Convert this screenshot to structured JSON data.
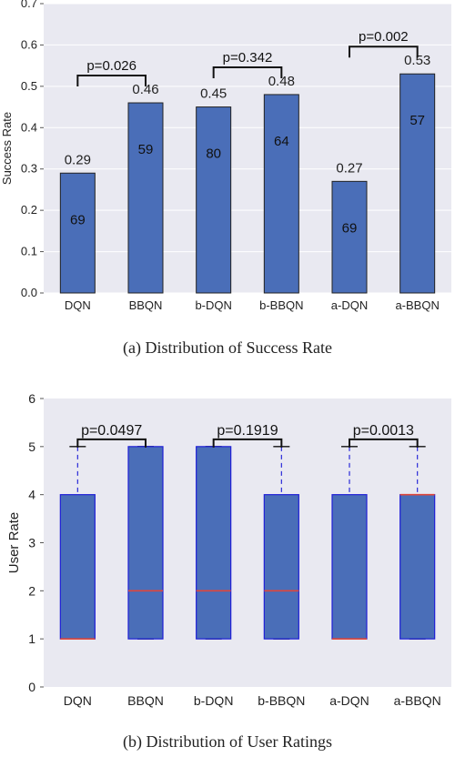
{
  "chart_data": [
    {
      "type": "bar",
      "caption": "(a) Distribution of Success Rate",
      "ylabel": "Success Rate",
      "ylim": [
        0,
        0.7
      ],
      "yticks": [
        "0.0",
        "0.1",
        "0.2",
        "0.3",
        "0.4",
        "0.5",
        "0.6",
        "0.7"
      ],
      "categories": [
        "DQN",
        "BBQN",
        "b-DQN",
        "b-BBQN",
        "a-DQN",
        "a-BBQN"
      ],
      "values": [
        0.29,
        0.46,
        0.45,
        0.48,
        0.27,
        0.53
      ],
      "value_labels": [
        "0.29",
        "0.46",
        "0.45",
        "0.48",
        "0.27",
        "0.53"
      ],
      "inner_labels": [
        "69",
        "59",
        "80",
        "64",
        "69",
        "57"
      ],
      "pvalues": [
        {
          "from": 0,
          "to": 1,
          "label": "p=0.026"
        },
        {
          "from": 2,
          "to": 3,
          "label": "p=0.342"
        },
        {
          "from": 4,
          "to": 5,
          "label": "p=0.002"
        }
      ],
      "colors": {
        "bar": "#4a6eb8",
        "background": "#e9e9f1"
      }
    },
    {
      "type": "box",
      "caption": "(b) Distribution of User Ratings",
      "ylabel": "User Rate",
      "ylim": [
        0,
        6
      ],
      "yticks": [
        "0",
        "1",
        "2",
        "3",
        "4",
        "5",
        "6"
      ],
      "categories": [
        "DQN",
        "BBQN",
        "b-DQN",
        "b-BBQN",
        "a-DQN",
        "a-BBQN"
      ],
      "boxes": [
        {
          "q1": 1,
          "median": 1,
          "q3": 4,
          "whisker_low": 1,
          "whisker_high": 5
        },
        {
          "q1": 1,
          "median": 2,
          "q3": 5,
          "whisker_low": 1,
          "whisker_high": 5
        },
        {
          "q1": 1,
          "median": 2,
          "q3": 5,
          "whisker_low": 1,
          "whisker_high": 5
        },
        {
          "q1": 1,
          "median": 2,
          "q3": 4,
          "whisker_low": 1,
          "whisker_high": 5
        },
        {
          "q1": 1,
          "median": 1,
          "q3": 4,
          "whisker_low": 1,
          "whisker_high": 5
        },
        {
          "q1": 1,
          "median": 4,
          "q3": 4,
          "whisker_low": 1,
          "whisker_high": 5
        }
      ],
      "pvalues": [
        {
          "from": 0,
          "to": 1,
          "label": "p=0.0497"
        },
        {
          "from": 2,
          "to": 3,
          "label": "p=0.1919"
        },
        {
          "from": 4,
          "to": 5,
          "label": "p=0.0013"
        }
      ],
      "colors": {
        "box": "#4a6eb8",
        "edge": "#1f1fd6",
        "median": "#e0463a",
        "whisker": "#2a2ad8",
        "background": "#e9e9f1"
      }
    }
  ]
}
